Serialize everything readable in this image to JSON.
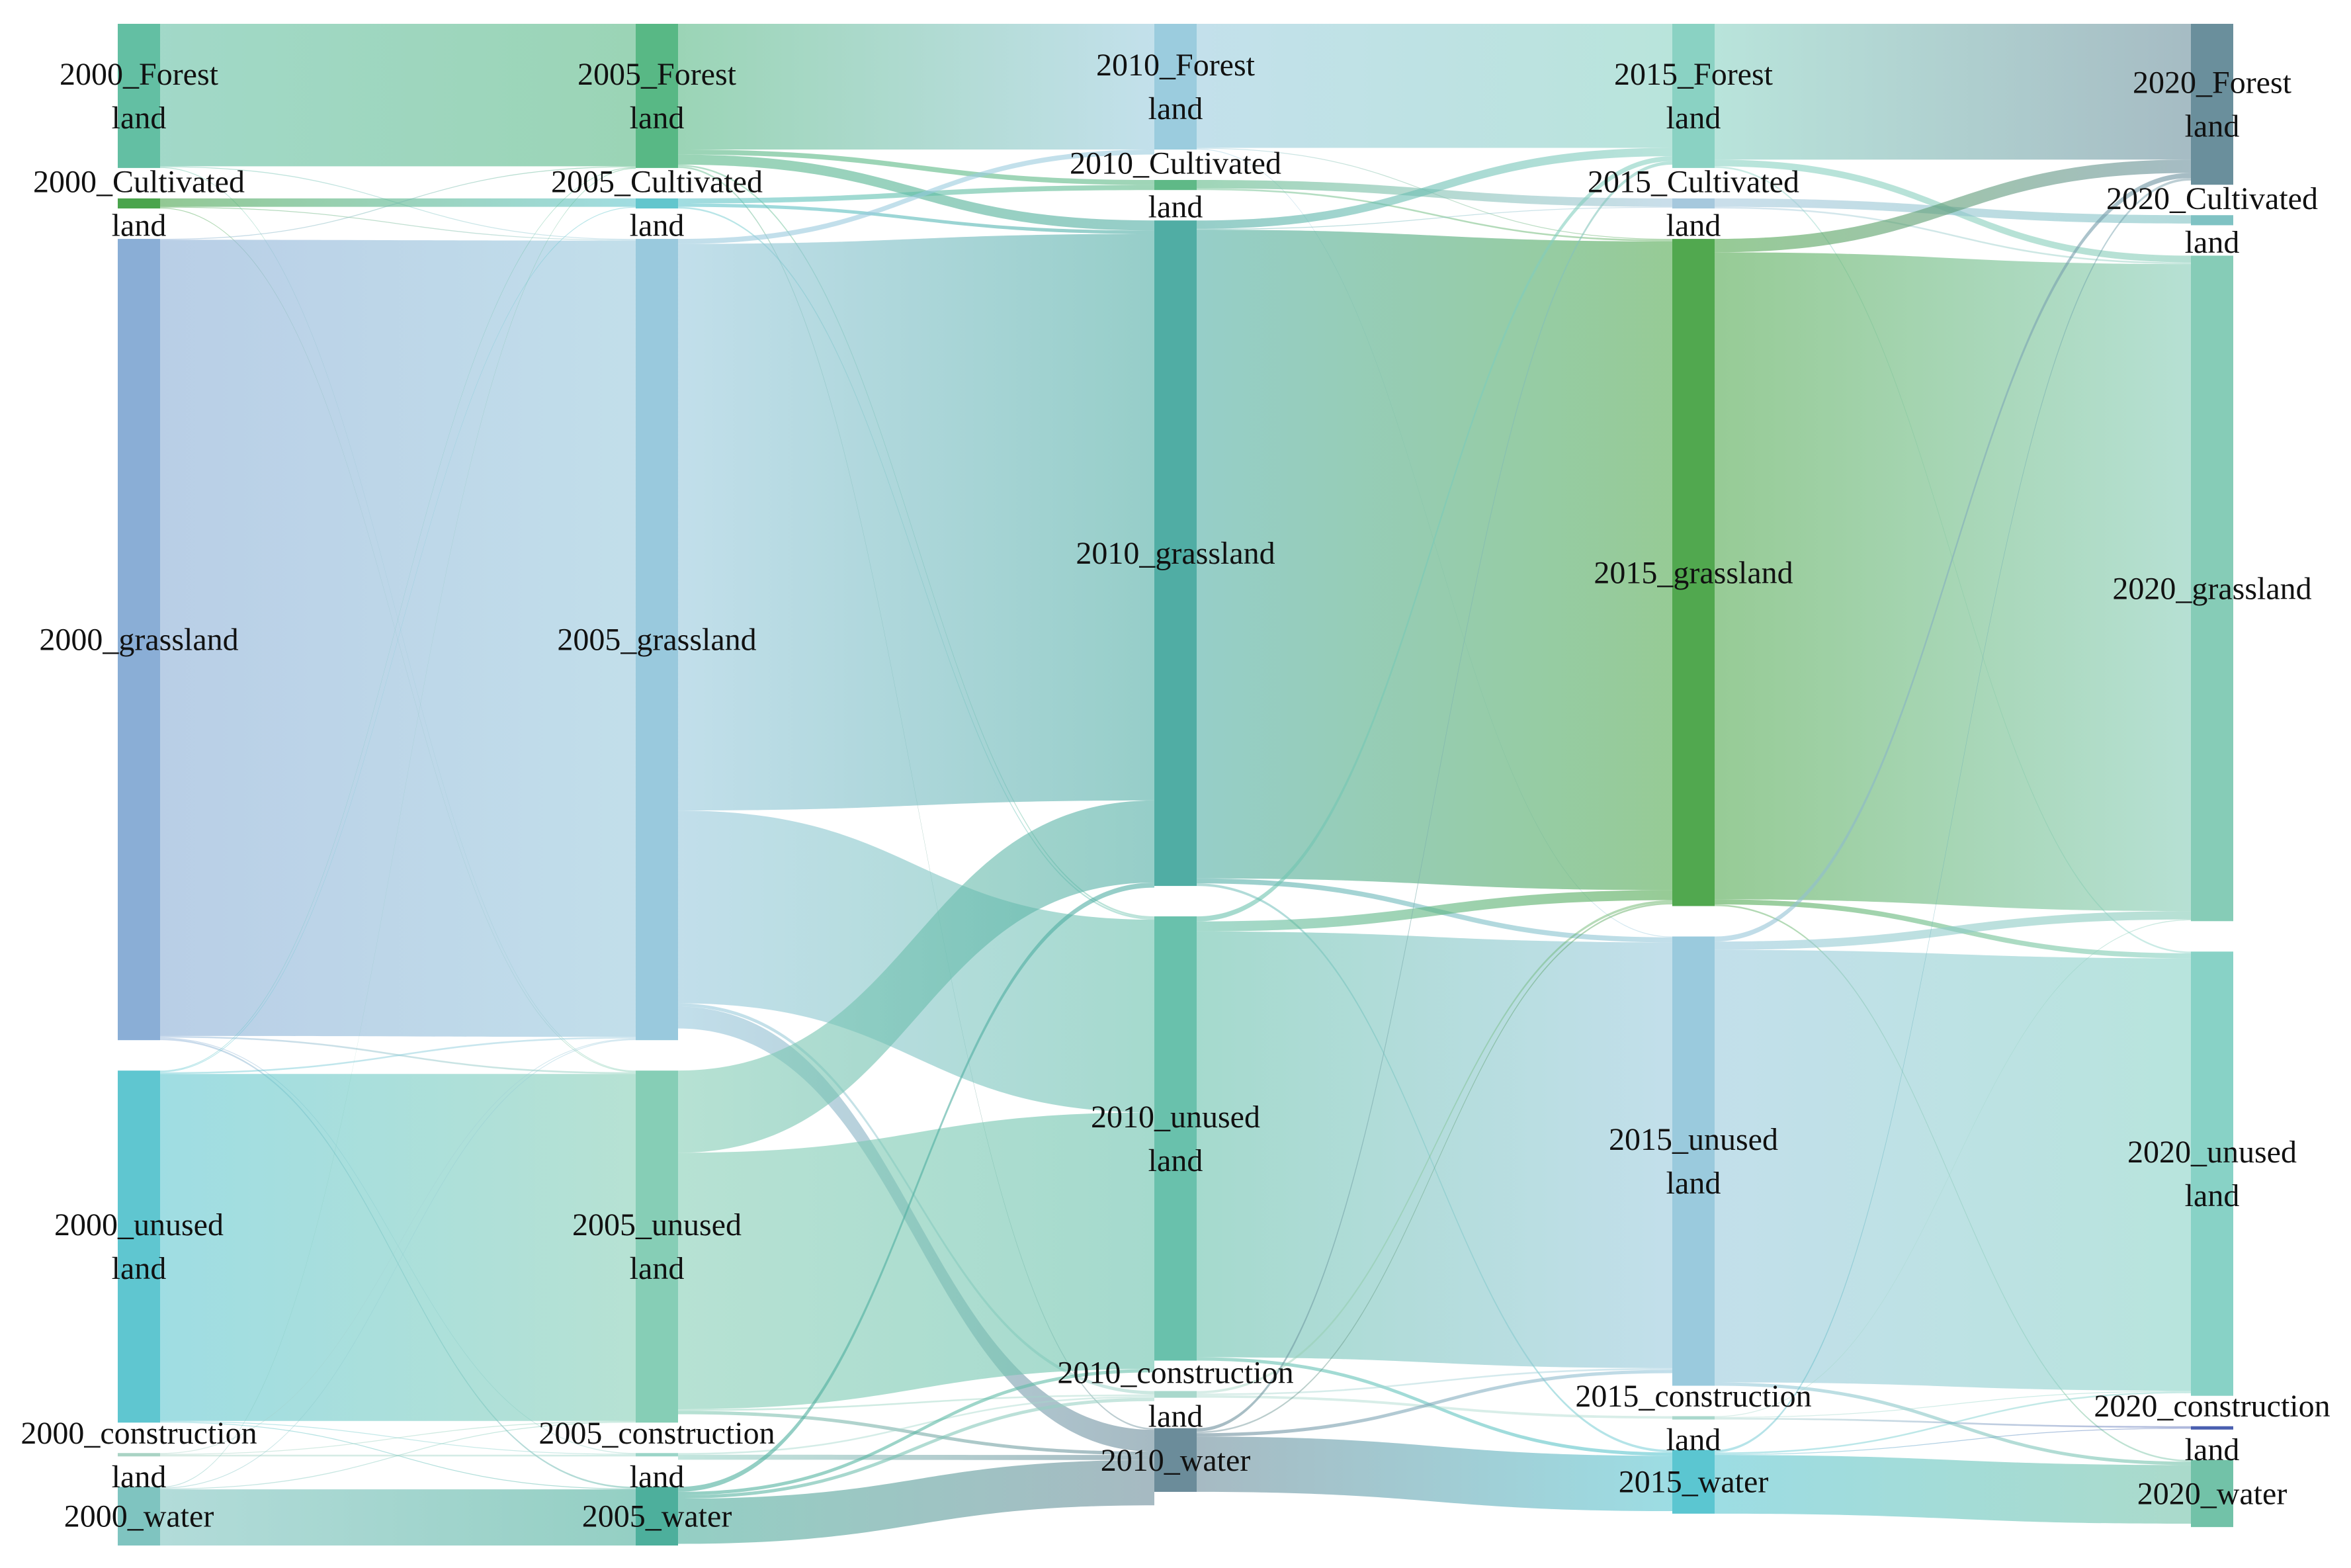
{
  "chart_data": {
    "type": "sankey",
    "title": "",
    "columns": [
      "2000",
      "2005",
      "2010",
      "2015",
      "2020"
    ],
    "nodes": [
      {
        "id": "2000_forest",
        "col": 0,
        "label": [
          "2000_Forest",
          "land"
        ],
        "color": "#63bfa3",
        "value": 8.6
      },
      {
        "id": "2000_cultivated",
        "col": 0,
        "label": [
          "2000_Cultivated",
          "land"
        ],
        "color": "#4aa44c",
        "value": 0.6
      },
      {
        "id": "2000_grassland",
        "col": 0,
        "label": [
          "2000_grassland"
        ],
        "color": "#8aaed6",
        "value": 47.8
      },
      {
        "id": "2000_unused",
        "col": 0,
        "label": [
          "2000_unused",
          "land"
        ],
        "color": "#5fc6d0",
        "value": 21.0
      },
      {
        "id": "2000_construction",
        "col": 0,
        "label": [
          "2000_construction",
          "land"
        ],
        "color": "#a9d3c4",
        "value": 0.2
      },
      {
        "id": "2000_water",
        "col": 0,
        "label": [
          "2000_water"
        ],
        "color": "#7fc4c0",
        "value": 3.5
      },
      {
        "id": "2005_forest",
        "col": 1,
        "label": [
          "2005_Forest",
          "land"
        ],
        "color": "#58b885",
        "value": 8.6
      },
      {
        "id": "2005_cultivated",
        "col": 1,
        "label": [
          "2005_Cultivated",
          "land"
        ],
        "color": "#62c6cd",
        "value": 0.6
      },
      {
        "id": "2005_grassland",
        "col": 1,
        "label": [
          "2005_grassland"
        ],
        "color": "#99c9dd",
        "value": 47.8
      },
      {
        "id": "2005_unused",
        "col": 1,
        "label": [
          "2005_unused",
          "land"
        ],
        "color": "#86ceb6",
        "value": 21.0
      },
      {
        "id": "2005_construction",
        "col": 1,
        "label": [
          "2005_construction",
          "land"
        ],
        "color": "#9bd5c8",
        "value": 0.2
      },
      {
        "id": "2005_water",
        "col": 1,
        "label": [
          "2005_water"
        ],
        "color": "#4daf9c",
        "value": 3.5
      },
      {
        "id": "2010_forest",
        "col": 2,
        "label": [
          "2010_Forest",
          "land"
        ],
        "color": "#9bccde",
        "value": 7.5
      },
      {
        "id": "2010_cultivated",
        "col": 2,
        "label": [
          "2010_Cultivated",
          "land"
        ],
        "color": "#5fb987",
        "value": 0.6
      },
      {
        "id": "2010_grassland",
        "col": 2,
        "label": [
          "2010_grassland"
        ],
        "color": "#50ada4",
        "value": 39.7
      },
      {
        "id": "2010_unused",
        "col": 2,
        "label": [
          "2010_unused",
          "land"
        ],
        "color": "#69c1ac",
        "value": 26.5
      },
      {
        "id": "2010_construction",
        "col": 2,
        "label": [
          "2010_construction",
          "land"
        ],
        "color": "#a9d8cc",
        "value": 0.4
      },
      {
        "id": "2010_water",
        "col": 2,
        "label": [
          "2010_water"
        ],
        "color": "#6b8c9a",
        "value": 3.8
      },
      {
        "id": "2015_forest",
        "col": 3,
        "label": [
          "2015_Forest",
          "land"
        ],
        "color": "#8ad2c3",
        "value": 8.6
      },
      {
        "id": "2015_cultivated",
        "col": 3,
        "label": [
          "2015_Cultivated",
          "land"
        ],
        "color": "#a6c8dd",
        "value": 0.6
      },
      {
        "id": "2015_grassland",
        "col": 3,
        "label": [
          "2015_grassland"
        ],
        "color": "#51a84f",
        "value": 39.8
      },
      {
        "id": "2015_unused",
        "col": 3,
        "label": [
          "2015_unused",
          "land"
        ],
        "color": "#9acadd",
        "value": 26.8
      },
      {
        "id": "2015_construction",
        "col": 3,
        "label": [
          "2015_construction",
          "land"
        ],
        "color": "#a9d8cc",
        "value": 0.2
      },
      {
        "id": "2015_water",
        "col": 3,
        "label": [
          "2015_water"
        ],
        "color": "#5bc6d1",
        "value": 3.8
      },
      {
        "id": "2020_forest",
        "col": 4,
        "label": [
          "2020_Forest",
          "land"
        ],
        "color": "#6a8f9c",
        "value": 9.6
      },
      {
        "id": "2020_cultivated",
        "col": 4,
        "label": [
          "2020_Cultivated",
          "land"
        ],
        "color": "#7fc2c3",
        "value": 0.6
      },
      {
        "id": "2020_grassland",
        "col": 4,
        "label": [
          "2020_grassland"
        ],
        "color": "#86ccb7",
        "value": 39.7
      },
      {
        "id": "2020_unused",
        "col": 4,
        "label": [
          "2020_unused",
          "land"
        ],
        "color": "#88d2c6",
        "value": 26.5
      },
      {
        "id": "2020_construction",
        "col": 4,
        "label": [
          "2020_construction",
          "land"
        ],
        "color": "#4a5fb0",
        "value": 0.2
      },
      {
        "id": "2020_water",
        "col": 4,
        "label": [
          "2020_water"
        ],
        "color": "#72c2a8",
        "value": 4.0
      }
    ],
    "links": [
      {
        "source": "2000_forest",
        "target": "2005_forest",
        "value": 8.5
      },
      {
        "source": "2000_forest",
        "target": "2005_grassland",
        "value": 0.05
      },
      {
        "source": "2000_forest",
        "target": "2005_unused",
        "value": 0.05
      },
      {
        "source": "2000_cultivated",
        "target": "2005_cultivated",
        "value": 0.5
      },
      {
        "source": "2000_cultivated",
        "target": "2005_grassland",
        "value": 0.05
      },
      {
        "source": "2000_cultivated",
        "target": "2005_unused",
        "value": 0.05
      },
      {
        "source": "2000_grassland",
        "target": "2005_grassland",
        "value": 47.5
      },
      {
        "source": "2000_grassland",
        "target": "2005_forest",
        "value": 0.05
      },
      {
        "source": "2000_grassland",
        "target": "2005_unused",
        "value": 0.1
      },
      {
        "source": "2000_grassland",
        "target": "2005_construction",
        "value": 0.05
      },
      {
        "source": "2000_grassland",
        "target": "2005_water",
        "value": 0.1
      },
      {
        "source": "2000_unused",
        "target": "2005_unused",
        "value": 20.7
      },
      {
        "source": "2000_unused",
        "target": "2005_grassland",
        "value": 0.1
      },
      {
        "source": "2000_unused",
        "target": "2005_forest",
        "value": 0.05
      },
      {
        "source": "2000_unused",
        "target": "2005_cultivated",
        "value": 0.05
      },
      {
        "source": "2000_unused",
        "target": "2005_construction",
        "value": 0.05
      },
      {
        "source": "2000_unused",
        "target": "2005_water",
        "value": 0.05
      },
      {
        "source": "2000_construction",
        "target": "2005_construction",
        "value": 0.1
      },
      {
        "source": "2000_construction",
        "target": "2005_unused",
        "value": 0.05
      },
      {
        "source": "2000_construction",
        "target": "2005_grassland",
        "value": 0.05
      },
      {
        "source": "2000_water",
        "target": "2005_water",
        "value": 3.35
      },
      {
        "source": "2000_water",
        "target": "2005_unused",
        "value": 0.05
      },
      {
        "source": "2000_water",
        "target": "2005_grassland",
        "value": 0.05
      },
      {
        "source": "2000_water",
        "target": "2005_forest",
        "value": 0.05
      },
      {
        "source": "2005_forest",
        "target": "2010_forest",
        "value": 7.5
      },
      {
        "source": "2005_forest",
        "target": "2010_cultivated",
        "value": 0.3
      },
      {
        "source": "2005_forest",
        "target": "2010_grassland",
        "value": 0.6
      },
      {
        "source": "2005_forest",
        "target": "2010_unused",
        "value": 0.1
      },
      {
        "source": "2005_forest",
        "target": "2010_water",
        "value": 0.1
      },
      {
        "source": "2005_cultivated",
        "target": "2010_cultivated",
        "value": 0.3
      },
      {
        "source": "2005_cultivated",
        "target": "2010_grassland",
        "value": 0.2
      },
      {
        "source": "2005_cultivated",
        "target": "2010_unused",
        "value": 0.1
      },
      {
        "source": "2005_grassland",
        "target": "2010_grassland",
        "value": 33.8
      },
      {
        "source": "2005_grassland",
        "target": "2010_unused",
        "value": 11.5
      },
      {
        "source": "2005_grassland",
        "target": "2010_water",
        "value": 1.3
      },
      {
        "source": "2005_grassland",
        "target": "2010_forest",
        "value": 0.3
      },
      {
        "source": "2005_grassland",
        "target": "2010_construction",
        "value": 0.2
      },
      {
        "source": "2005_unused",
        "target": "2010_grassland",
        "value": 4.9
      },
      {
        "source": "2005_unused",
        "target": "2010_unused",
        "value": 15.3
      },
      {
        "source": "2005_unused",
        "target": "2010_construction",
        "value": 0.1
      },
      {
        "source": "2005_unused",
        "target": "2010_water",
        "value": 0.2
      },
      {
        "source": "2005_construction",
        "target": "2010_construction",
        "value": 0.1
      },
      {
        "source": "2005_construction",
        "target": "2010_water",
        "value": 0.3
      },
      {
        "source": "2005_water",
        "target": "2010_water",
        "value": 2.7
      },
      {
        "source": "2005_water",
        "target": "2010_grassland",
        "value": 0.3
      },
      {
        "source": "2005_water",
        "target": "2010_unused",
        "value": 0.2
      },
      {
        "source": "2005_water",
        "target": "2010_construction",
        "value": 0.2
      },
      {
        "source": "2010_forest",
        "target": "2015_forest",
        "value": 7.4
      },
      {
        "source": "2010_forest",
        "target": "2015_grassland",
        "value": 0.05
      },
      {
        "source": "2010_forest",
        "target": "2015_unused",
        "value": 0.05
      },
      {
        "source": "2010_cultivated",
        "target": "2015_cultivated",
        "value": 0.5
      },
      {
        "source": "2010_cultivated",
        "target": "2015_grassland",
        "value": 0.1
      },
      {
        "source": "2010_grassland",
        "target": "2015_grassland",
        "value": 38.7
      },
      {
        "source": "2010_grassland",
        "target": "2015_forest",
        "value": 0.5
      },
      {
        "source": "2010_grassland",
        "target": "2015_unused",
        "value": 0.3
      },
      {
        "source": "2010_grassland",
        "target": "2015_cultivated",
        "value": 0.05
      },
      {
        "source": "2010_grassland",
        "target": "2015_water",
        "value": 0.15
      },
      {
        "source": "2010_unused",
        "target": "2015_unused",
        "value": 25.4
      },
      {
        "source": "2010_unused",
        "target": "2015_grassland",
        "value": 0.6
      },
      {
        "source": "2010_unused",
        "target": "2015_forest",
        "value": 0.3
      },
      {
        "source": "2010_unused",
        "target": "2015_water",
        "value": 0.2
      },
      {
        "source": "2010_construction",
        "target": "2015_construction",
        "value": 0.15
      },
      {
        "source": "2010_construction",
        "target": "2015_unused",
        "value": 0.1
      },
      {
        "source": "2010_construction",
        "target": "2015_grassland",
        "value": 0.15
      },
      {
        "source": "2010_water",
        "target": "2015_water",
        "value": 3.3
      },
      {
        "source": "2010_water",
        "target": "2015_unused",
        "value": 0.2
      },
      {
        "source": "2010_water",
        "target": "2015_grassland",
        "value": 0.1
      },
      {
        "source": "2010_water",
        "target": "2015_forest",
        "value": 0.2
      },
      {
        "source": "2015_forest",
        "target": "2020_forest",
        "value": 8.1
      },
      {
        "source": "2015_forest",
        "target": "2020_grassland",
        "value": 0.4
      },
      {
        "source": "2015_forest",
        "target": "2020_unused",
        "value": 0.1
      },
      {
        "source": "2015_cultivated",
        "target": "2020_cultivated",
        "value": 0.5
      },
      {
        "source": "2015_cultivated",
        "target": "2020_grassland",
        "value": 0.1
      },
      {
        "source": "2015_grassland",
        "target": "2020_grassland",
        "value": 38.6
      },
      {
        "source": "2015_grassland",
        "target": "2020_forest",
        "value": 0.8
      },
      {
        "source": "2015_grassland",
        "target": "2020_unused",
        "value": 0.3
      },
      {
        "source": "2015_grassland",
        "target": "2020_water",
        "value": 0.1
      },
      {
        "source": "2015_unused",
        "target": "2020_unused",
        "value": 25.8
      },
      {
        "source": "2015_unused",
        "target": "2020_grassland",
        "value": 0.5
      },
      {
        "source": "2015_unused",
        "target": "2020_forest",
        "value": 0.3
      },
      {
        "source": "2015_unused",
        "target": "2020_water",
        "value": 0.2
      },
      {
        "source": "2015_construction",
        "target": "2020_construction",
        "value": 0.1
      },
      {
        "source": "2015_construction",
        "target": "2020_unused",
        "value": 0.05
      },
      {
        "source": "2015_construction",
        "target": "2020_grassland",
        "value": 0.05
      },
      {
        "source": "2015_water",
        "target": "2020_water",
        "value": 3.5
      },
      {
        "source": "2015_water",
        "target": "2020_unused",
        "value": 0.1
      },
      {
        "source": "2015_water",
        "target": "2020_forest",
        "value": 0.15
      },
      {
        "source": "2015_water",
        "target": "2020_construction",
        "value": 0.05
      }
    ]
  }
}
